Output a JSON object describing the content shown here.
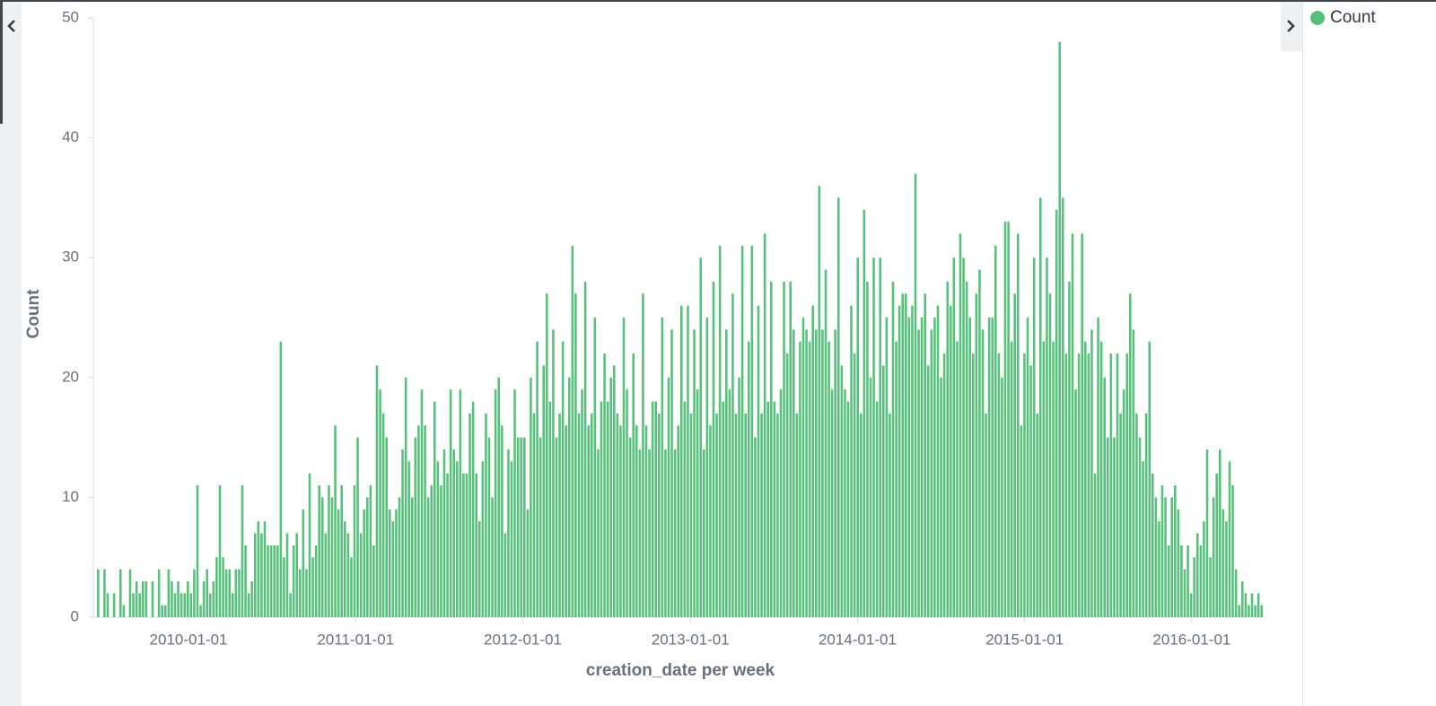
{
  "chart_data": {
    "type": "bar",
    "xlabel": "creation_date per week",
    "ylabel": "Count",
    "x": [
      "2009-06-15",
      "2009-06-22",
      "2009-06-29",
      "2009-07-06",
      "2009-07-13",
      "2009-07-20",
      "2009-07-27",
      "2009-08-03",
      "2009-08-10",
      "2009-08-17",
      "2009-08-24",
      "2009-08-31",
      "2009-09-07",
      "2009-09-14",
      "2009-09-21",
      "2009-09-28",
      "2009-10-05",
      "2009-10-12",
      "2009-10-19",
      "2009-10-26",
      "2009-11-02",
      "2009-11-09",
      "2009-11-16",
      "2009-11-23",
      "2009-11-30",
      "2009-12-07",
      "2009-12-14",
      "2009-12-21",
      "2009-12-28",
      "2010-01-04",
      "2010-01-11",
      "2010-01-18",
      "2010-01-25",
      "2010-02-01",
      "2010-02-08",
      "2010-02-15",
      "2010-02-22",
      "2010-03-01",
      "2010-03-08",
      "2010-03-15",
      "2010-03-22",
      "2010-03-29",
      "2010-04-05",
      "2010-04-12",
      "2010-04-19",
      "2010-04-26",
      "2010-05-03",
      "2010-05-10",
      "2010-05-17",
      "2010-05-24",
      "2010-05-31",
      "2010-06-07",
      "2010-06-14",
      "2010-06-21",
      "2010-06-28",
      "2010-07-05",
      "2010-07-12",
      "2010-07-19",
      "2010-07-26",
      "2010-08-02",
      "2010-08-09",
      "2010-08-16",
      "2010-08-23",
      "2010-08-30",
      "2010-09-06",
      "2010-09-13",
      "2010-09-20",
      "2010-09-27",
      "2010-10-04",
      "2010-10-11",
      "2010-10-18",
      "2010-10-25",
      "2010-11-01",
      "2010-11-08",
      "2010-11-15",
      "2010-11-22",
      "2010-11-29",
      "2010-12-06",
      "2010-12-13",
      "2010-12-20",
      "2010-12-27",
      "2011-01-03",
      "2011-01-10",
      "2011-01-17",
      "2011-01-24",
      "2011-01-31",
      "2011-02-07",
      "2011-02-14",
      "2011-02-21",
      "2011-02-28",
      "2011-03-07",
      "2011-03-14",
      "2011-03-21",
      "2011-03-28",
      "2011-04-04",
      "2011-04-11",
      "2011-04-18",
      "2011-04-25",
      "2011-05-02",
      "2011-05-09",
      "2011-05-16",
      "2011-05-23",
      "2011-05-30",
      "2011-06-06",
      "2011-06-13",
      "2011-06-20",
      "2011-06-27",
      "2011-07-04",
      "2011-07-11",
      "2011-07-18",
      "2011-07-25",
      "2011-08-01",
      "2011-08-08",
      "2011-08-15",
      "2011-08-22",
      "2011-08-29",
      "2011-09-05",
      "2011-09-12",
      "2011-09-19",
      "2011-09-26",
      "2011-10-03",
      "2011-10-10",
      "2011-10-17",
      "2011-10-24",
      "2011-10-31",
      "2011-11-07",
      "2011-11-14",
      "2011-11-21",
      "2011-11-28",
      "2011-12-05",
      "2011-12-12",
      "2011-12-19",
      "2011-12-26",
      "2012-01-02",
      "2012-01-09",
      "2012-01-16",
      "2012-01-23",
      "2012-01-30",
      "2012-02-06",
      "2012-02-13",
      "2012-02-20",
      "2012-02-27",
      "2012-03-05",
      "2012-03-12",
      "2012-03-19",
      "2012-03-26",
      "2012-04-02",
      "2012-04-09",
      "2012-04-16",
      "2012-04-23",
      "2012-04-30",
      "2012-05-07",
      "2012-05-14",
      "2012-05-21",
      "2012-05-28",
      "2012-06-04",
      "2012-06-11",
      "2012-06-18",
      "2012-06-25",
      "2012-07-02",
      "2012-07-09",
      "2012-07-16",
      "2012-07-23",
      "2012-07-30",
      "2012-08-06",
      "2012-08-13",
      "2012-08-20",
      "2012-08-27",
      "2012-09-03",
      "2012-09-10",
      "2012-09-17",
      "2012-09-24",
      "2012-10-01",
      "2012-10-08",
      "2012-10-15",
      "2012-10-22",
      "2012-10-29",
      "2012-11-05",
      "2012-11-12",
      "2012-11-19",
      "2012-11-26",
      "2012-12-03",
      "2012-12-10",
      "2012-12-17",
      "2012-12-24",
      "2012-12-31",
      "2013-01-07",
      "2013-01-14",
      "2013-01-21",
      "2013-01-28",
      "2013-02-04",
      "2013-02-11",
      "2013-02-18",
      "2013-02-25",
      "2013-03-04",
      "2013-03-11",
      "2013-03-18",
      "2013-03-25",
      "2013-04-01",
      "2013-04-08",
      "2013-04-15",
      "2013-04-22",
      "2013-04-29",
      "2013-05-06",
      "2013-05-13",
      "2013-05-20",
      "2013-05-27",
      "2013-06-03",
      "2013-06-10",
      "2013-06-17",
      "2013-06-24",
      "2013-07-01",
      "2013-07-08",
      "2013-07-15",
      "2013-07-22",
      "2013-07-29",
      "2013-08-05",
      "2013-08-12",
      "2013-08-19",
      "2013-08-26",
      "2013-09-02",
      "2013-09-09",
      "2013-09-16",
      "2013-09-23",
      "2013-09-30",
      "2013-10-07",
      "2013-10-14",
      "2013-10-21",
      "2013-10-28",
      "2013-11-04",
      "2013-11-11",
      "2013-11-18",
      "2013-11-25",
      "2013-12-02",
      "2013-12-09",
      "2013-12-16",
      "2013-12-23",
      "2013-12-30",
      "2014-01-06",
      "2014-01-13",
      "2014-01-20",
      "2014-01-27",
      "2014-02-03",
      "2014-02-10",
      "2014-02-17",
      "2014-02-24",
      "2014-03-03",
      "2014-03-10",
      "2014-03-17",
      "2014-03-24",
      "2014-03-31",
      "2014-04-07",
      "2014-04-14",
      "2014-04-21",
      "2014-04-28",
      "2014-05-05",
      "2014-05-12",
      "2014-05-19",
      "2014-05-26",
      "2014-06-02",
      "2014-06-09",
      "2014-06-16",
      "2014-06-23",
      "2014-06-30",
      "2014-07-07",
      "2014-07-14",
      "2014-07-21",
      "2014-07-28",
      "2014-08-04",
      "2014-08-11",
      "2014-08-18",
      "2014-08-25",
      "2014-09-01",
      "2014-09-08",
      "2014-09-15",
      "2014-09-22",
      "2014-09-29",
      "2014-10-06",
      "2014-10-13",
      "2014-10-20",
      "2014-10-27",
      "2014-11-03",
      "2014-11-10",
      "2014-11-17",
      "2014-11-24",
      "2014-12-01",
      "2014-12-08",
      "2014-12-15",
      "2014-12-22",
      "2014-12-29",
      "2015-01-05",
      "2015-01-12",
      "2015-01-19",
      "2015-01-26",
      "2015-02-02",
      "2015-02-09",
      "2015-02-16",
      "2015-02-23",
      "2015-03-02",
      "2015-03-09",
      "2015-03-16",
      "2015-03-23",
      "2015-03-30",
      "2015-04-06",
      "2015-04-13",
      "2015-04-20",
      "2015-04-27",
      "2015-05-04",
      "2015-05-11",
      "2015-05-18",
      "2015-05-25",
      "2015-06-01",
      "2015-06-08",
      "2015-06-15",
      "2015-06-22",
      "2015-06-29",
      "2015-07-06",
      "2015-07-13",
      "2015-07-20",
      "2015-07-27",
      "2015-08-03",
      "2015-08-10",
      "2015-08-17",
      "2015-08-24",
      "2015-08-31",
      "2015-09-07",
      "2015-09-14",
      "2015-09-21",
      "2015-09-28",
      "2015-10-05",
      "2015-10-12",
      "2015-10-19",
      "2015-10-26",
      "2015-11-02",
      "2015-11-09",
      "2015-11-16",
      "2015-11-23",
      "2015-11-30",
      "2015-12-07",
      "2015-12-14",
      "2015-12-21",
      "2015-12-28",
      "2016-01-04",
      "2016-01-11",
      "2016-01-18",
      "2016-01-25",
      "2016-02-01",
      "2016-02-08",
      "2016-02-15",
      "2016-02-22",
      "2016-02-29",
      "2016-03-07",
      "2016-03-14",
      "2016-03-21",
      "2016-03-28",
      "2016-04-04",
      "2016-04-11",
      "2016-04-18",
      "2016-04-25",
      "2016-05-02",
      "2016-05-09",
      "2016-05-16",
      "2016-05-23",
      "2016-05-30"
    ],
    "series": [
      {
        "name": "Count",
        "color": "#57c17b",
        "values": [
          4,
          0,
          4,
          2,
          0,
          2,
          0,
          4,
          1,
          0,
          4,
          2,
          3,
          2,
          3,
          3,
          0,
          3,
          0,
          4,
          1,
          1,
          4,
          3,
          2,
          3,
          2,
          2,
          3,
          2,
          4,
          11,
          1,
          3,
          4,
          2,
          3,
          5,
          11,
          5,
          4,
          4,
          2,
          4,
          4,
          11,
          6,
          2,
          3,
          7,
          8,
          7,
          8,
          6,
          6,
          6,
          6,
          23,
          5,
          7,
          2,
          6,
          7,
          4,
          9,
          4,
          12,
          5,
          6,
          11,
          10,
          7,
          11,
          10,
          16,
          9,
          11,
          8,
          7,
          5,
          11,
          15,
          7,
          9,
          10,
          11,
          6,
          21,
          19,
          17,
          15,
          9,
          8,
          9,
          10,
          14,
          20,
          13,
          10,
          15,
          16,
          19,
          16,
          10,
          11,
          18,
          13,
          11,
          14,
          12,
          19,
          14,
          13,
          19,
          12,
          12,
          17,
          18,
          12,
          8,
          13,
          17,
          15,
          10,
          19,
          20,
          16,
          7,
          14,
          13,
          19,
          15,
          15,
          15,
          9,
          20,
          17,
          23,
          15,
          21,
          27,
          18,
          24,
          15,
          17,
          23,
          16,
          20,
          31,
          27,
          17,
          19,
          28,
          16,
          17,
          25,
          14,
          18,
          22,
          18,
          20,
          21,
          17,
          16,
          25,
          19,
          15,
          22,
          16,
          14,
          27,
          16,
          14,
          18,
          18,
          17,
          25,
          14,
          20,
          24,
          14,
          16,
          26,
          18,
          26,
          17,
          24,
          19,
          30,
          14,
          25,
          16,
          28,
          17,
          31,
          18,
          24,
          19,
          27,
          17,
          20,
          31,
          17,
          23,
          31,
          15,
          26,
          17,
          32,
          18,
          28,
          18,
          17,
          19,
          28,
          22,
          28,
          24,
          17,
          23,
          25,
          24,
          23,
          26,
          24,
          36,
          24,
          29,
          23,
          19,
          24,
          35,
          21,
          19,
          18,
          26,
          22,
          30,
          17,
          34,
          28,
          20,
          30,
          18,
          30,
          21,
          25,
          17,
          28,
          23,
          26,
          27,
          27,
          25,
          26,
          37,
          24,
          25,
          27,
          21,
          24,
          25,
          26,
          20,
          22,
          28,
          26,
          30,
          23,
          32,
          30,
          28,
          25,
          22,
          27,
          29,
          24,
          17,
          25,
          25,
          31,
          22,
          20,
          33,
          33,
          23,
          27,
          32,
          16,
          22,
          25,
          21,
          30,
          17,
          35,
          23,
          30,
          27,
          23,
          34,
          48,
          35,
          22,
          28,
          32,
          19,
          22,
          32,
          23,
          22,
          24,
          12,
          25,
          23,
          20,
          15,
          22,
          15,
          22,
          17,
          19,
          22,
          27,
          24,
          17,
          15,
          13,
          17,
          23,
          12,
          10,
          8,
          11,
          10,
          6,
          10,
          11,
          9,
          6,
          4,
          6,
          2,
          5,
          7,
          6,
          8,
          14,
          5,
          10,
          12,
          14,
          9,
          8,
          13,
          11,
          4,
          1,
          3,
          2,
          1,
          2,
          1,
          2,
          1
        ]
      }
    ],
    "xlim": [
      "2009-06-15",
      "2016-06-06"
    ],
    "xticks": [
      "2010-01-01",
      "2011-01-01",
      "2012-01-01",
      "2013-01-01",
      "2014-01-01",
      "2015-01-01",
      "2016-01-01"
    ],
    "ylim": [
      0,
      50
    ],
    "yticks": [
      0,
      10,
      20,
      30,
      40,
      50
    ],
    "grid": false
  }
}
